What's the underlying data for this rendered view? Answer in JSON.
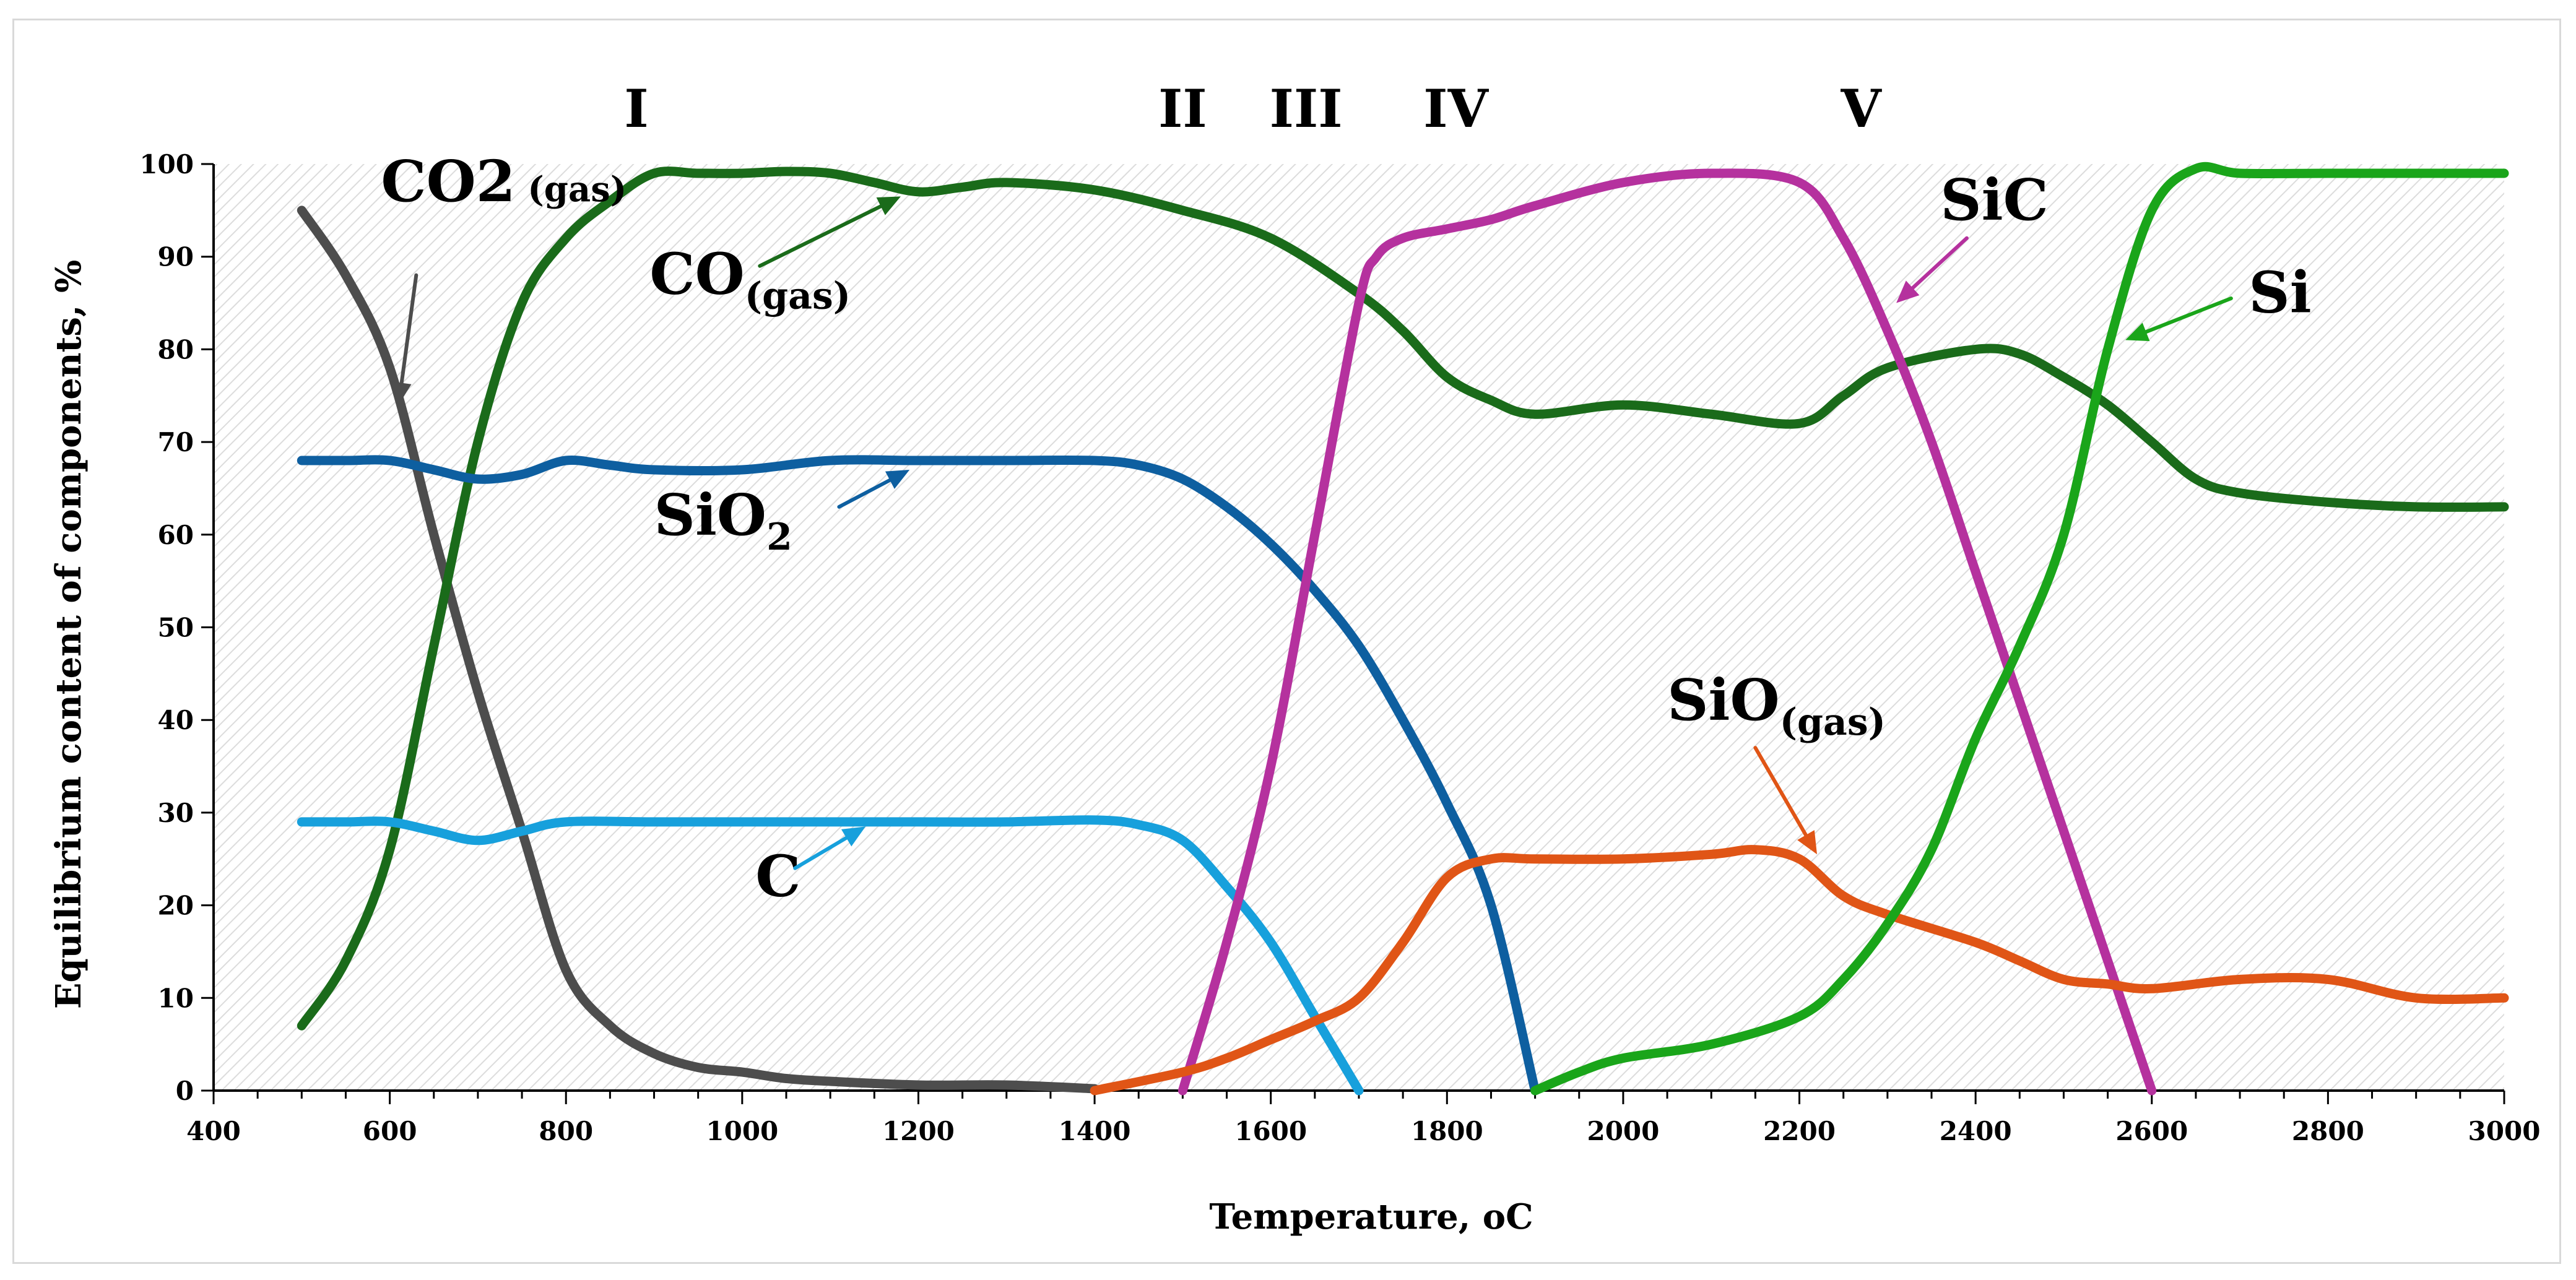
{
  "chart_data": {
    "type": "line",
    "title": "",
    "xlabel": "Temperature, ",
    "xlabel_unit": "oC",
    "ylabel": "Equilibrium content of components, %",
    "xlim": [
      400,
      3000
    ],
    "ylim": [
      0,
      100
    ],
    "x_ticks": [
      400,
      600,
      800,
      1000,
      1200,
      1400,
      1600,
      1800,
      2000,
      2200,
      2400,
      2600,
      2800,
      3000
    ],
    "y_ticks": [
      0,
      10,
      20,
      30,
      40,
      50,
      60,
      70,
      80,
      90,
      100
    ],
    "x_minor_step": 50,
    "background": "diagonal-hatch",
    "stages": [
      {
        "label": "I",
        "x": 880
      },
      {
        "label": "II",
        "x": 1500
      },
      {
        "label": "III",
        "x": 1640
      },
      {
        "label": "IV",
        "x": 1810
      },
      {
        "label": "V",
        "x": 2270
      }
    ],
    "series": [
      {
        "name": "CO2 (gas)",
        "label_main": "CO",
        "label_digit": "2",
        "label_sub": " (gas)",
        "sub_style": "inline",
        "color": "#4d4d4d",
        "label_at": [
          590,
          96
        ],
        "arrow": {
          "from": [
            630,
            88
          ],
          "to": [
            610,
            74
          ]
        },
        "points": [
          [
            500,
            95
          ],
          [
            550,
            88
          ],
          [
            600,
            78
          ],
          [
            650,
            60
          ],
          [
            700,
            43
          ],
          [
            750,
            28
          ],
          [
            800,
            13
          ],
          [
            850,
            7
          ],
          [
            900,
            4
          ],
          [
            950,
            2.5
          ],
          [
            1000,
            2
          ],
          [
            1050,
            1.3
          ],
          [
            1100,
            1
          ],
          [
            1200,
            0.6
          ],
          [
            1300,
            0.6
          ],
          [
            1400,
            0.2
          ]
        ]
      },
      {
        "name": "CO(gas)",
        "label_main": "CO",
        "label_digit": "",
        "label_sub": "(gas)",
        "sub_style": "subscript",
        "color": "#1a6b1a",
        "label_at": [
          895,
          86
        ],
        "arrow": {
          "from": [
            1020,
            89
          ],
          "to": [
            1180,
            96.5
          ]
        },
        "points": [
          [
            500,
            7
          ],
          [
            550,
            14
          ],
          [
            600,
            26
          ],
          [
            650,
            48
          ],
          [
            700,
            70
          ],
          [
            750,
            85
          ],
          [
            800,
            92
          ],
          [
            850,
            96
          ],
          [
            900,
            99
          ],
          [
            950,
            99
          ],
          [
            1000,
            99
          ],
          [
            1050,
            99.2
          ],
          [
            1100,
            99
          ],
          [
            1150,
            98
          ],
          [
            1200,
            97
          ],
          [
            1250,
            97.5
          ],
          [
            1300,
            98
          ],
          [
            1400,
            97.2
          ],
          [
            1500,
            95
          ],
          [
            1600,
            92
          ],
          [
            1700,
            86
          ],
          [
            1750,
            82
          ],
          [
            1800,
            77
          ],
          [
            1850,
            74.5
          ],
          [
            1900,
            73
          ],
          [
            2000,
            74
          ],
          [
            2100,
            73
          ],
          [
            2200,
            72
          ],
          [
            2250,
            75
          ],
          [
            2300,
            78
          ],
          [
            2400,
            80
          ],
          [
            2450,
            79.5
          ],
          [
            2500,
            77
          ],
          [
            2550,
            74
          ],
          [
            2600,
            70
          ],
          [
            2650,
            66
          ],
          [
            2700,
            64.5
          ],
          [
            2800,
            63.5
          ],
          [
            2900,
            63
          ],
          [
            3000,
            63
          ]
        ]
      },
      {
        "name": "SiO2",
        "label_main": "SiO",
        "label_digit": "",
        "label_sub": "2",
        "sub_style": "subscript",
        "color": "#0e5fa0",
        "label_at": [
          900,
          60
        ],
        "arrow": {
          "from": [
            1110,
            63
          ],
          "to": [
            1190,
            67
          ]
        },
        "points": [
          [
            500,
            68
          ],
          [
            550,
            68
          ],
          [
            600,
            68
          ],
          [
            650,
            67
          ],
          [
            700,
            66
          ],
          [
            750,
            66.5
          ],
          [
            800,
            68
          ],
          [
            850,
            67.5
          ],
          [
            900,
            67
          ],
          [
            1000,
            67
          ],
          [
            1100,
            68
          ],
          [
            1200,
            68
          ],
          [
            1300,
            68
          ],
          [
            1400,
            68
          ],
          [
            1450,
            67.5
          ],
          [
            1500,
            66
          ],
          [
            1550,
            63
          ],
          [
            1600,
            59
          ],
          [
            1650,
            54
          ],
          [
            1700,
            48
          ],
          [
            1750,
            40
          ],
          [
            1800,
            31
          ],
          [
            1850,
            20
          ],
          [
            1900,
            0
          ]
        ]
      },
      {
        "name": "C",
        "label_main": "C",
        "label_digit": "",
        "label_sub": "",
        "sub_style": "none",
        "color": "#17a0dc",
        "label_at": [
          1015,
          21
        ],
        "arrow": {
          "from": [
            1060,
            24
          ],
          "to": [
            1140,
            28.5
          ]
        },
        "points": [
          [
            500,
            29
          ],
          [
            550,
            29
          ],
          [
            600,
            29
          ],
          [
            650,
            28
          ],
          [
            700,
            27
          ],
          [
            750,
            28
          ],
          [
            800,
            29
          ],
          [
            900,
            29
          ],
          [
            1000,
            29
          ],
          [
            1100,
            29
          ],
          [
            1200,
            29
          ],
          [
            1300,
            29
          ],
          [
            1400,
            29.2
          ],
          [
            1450,
            28.7
          ],
          [
            1500,
            27
          ],
          [
            1550,
            22
          ],
          [
            1600,
            16
          ],
          [
            1650,
            8
          ],
          [
            1700,
            0
          ]
        ]
      },
      {
        "name": "SiC",
        "label_main": "SiC",
        "label_digit": "",
        "label_sub": "",
        "sub_style": "none",
        "color": "#b5319e",
        "label_at": [
          2360,
          94
        ],
        "arrow": {
          "from": [
            2390,
            92
          ],
          "to": [
            2310,
            85
          ]
        },
        "points": [
          [
            1500,
            0
          ],
          [
            1550,
            16
          ],
          [
            1600,
            35
          ],
          [
            1650,
            60
          ],
          [
            1700,
            85
          ],
          [
            1720,
            90
          ],
          [
            1750,
            92
          ],
          [
            1800,
            93
          ],
          [
            1850,
            94
          ],
          [
            1900,
            95.5
          ],
          [
            2000,
            98
          ],
          [
            2100,
            99
          ],
          [
            2200,
            98
          ],
          [
            2250,
            92
          ],
          [
            2300,
            82
          ],
          [
            2350,
            70
          ],
          [
            2400,
            56
          ],
          [
            2450,
            42
          ],
          [
            2500,
            28
          ],
          [
            2550,
            14
          ],
          [
            2600,
            0
          ]
        ]
      },
      {
        "name": "SiO(gas)",
        "label_main": "SiO",
        "label_digit": "",
        "label_sub": "(gas)",
        "sub_style": "subscript",
        "color": "#e05516",
        "label_at": [
          2050,
          40
        ],
        "arrow": {
          "from": [
            2150,
            37
          ],
          "to": [
            2220,
            25.5
          ]
        },
        "points": [
          [
            1400,
            0
          ],
          [
            1500,
            2
          ],
          [
            1550,
            3.5
          ],
          [
            1600,
            5.5
          ],
          [
            1650,
            7.5
          ],
          [
            1700,
            10
          ],
          [
            1750,
            16
          ],
          [
            1800,
            23
          ],
          [
            1850,
            25
          ],
          [
            1900,
            25
          ],
          [
            2000,
            25
          ],
          [
            2100,
            25.5
          ],
          [
            2150,
            26
          ],
          [
            2200,
            25
          ],
          [
            2250,
            21
          ],
          [
            2300,
            19
          ],
          [
            2400,
            16
          ],
          [
            2450,
            14
          ],
          [
            2500,
            12
          ],
          [
            2550,
            11.5
          ],
          [
            2600,
            11
          ],
          [
            2700,
            12
          ],
          [
            2800,
            12
          ],
          [
            2900,
            10
          ],
          [
            3000,
            10
          ]
        ]
      },
      {
        "name": "Si",
        "label_main": "Si",
        "label_digit": "",
        "label_sub": "",
        "sub_style": "none",
        "color": "#1aa51a",
        "label_at": [
          2710,
          84
        ],
        "arrow": {
          "from": [
            2690,
            85.5
          ],
          "to": [
            2570,
            81
          ]
        },
        "points": [
          [
            1900,
            0
          ],
          [
            1950,
            2
          ],
          [
            2000,
            3.5
          ],
          [
            2100,
            5
          ],
          [
            2200,
            8
          ],
          [
            2250,
            12
          ],
          [
            2300,
            18
          ],
          [
            2350,
            26
          ],
          [
            2400,
            38
          ],
          [
            2450,
            48
          ],
          [
            2500,
            60
          ],
          [
            2550,
            80
          ],
          [
            2600,
            95
          ],
          [
            2650,
            99.5
          ],
          [
            2700,
            99
          ],
          [
            2800,
            99
          ],
          [
            2900,
            99
          ],
          [
            3000,
            99
          ]
        ]
      }
    ]
  }
}
